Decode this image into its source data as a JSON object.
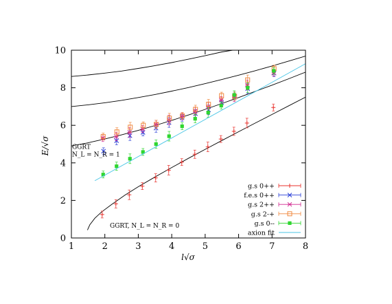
{
  "chart_data": {
    "type": "scatter",
    "xlabel": "l√σ",
    "ylabel": "E/√σ",
    "xlim": [
      1,
      8
    ],
    "ylim": [
      0,
      10
    ],
    "xticks": [
      "1",
      "2",
      "3",
      "4",
      "5",
      "6",
      "7",
      "8"
    ],
    "yticks": [
      "0",
      "2",
      "4",
      "6",
      "8",
      "10"
    ],
    "grid": false,
    "legend_position": "bottom-right",
    "annotations": [
      {
        "id": "ggrt1",
        "lines": [
          "GGRT",
          "N_L = N_R = 1"
        ],
        "x": 1.02,
        "y": 4.75
      },
      {
        "id": "ggrt0",
        "lines": [
          "GGRT, N_L = N_R = 0"
        ],
        "x": 2.15,
        "y": 0.55
      }
    ],
    "series": [
      {
        "name": "g.s 0++",
        "color": "#e8302b",
        "marker": "plus",
        "x": [
          1.92,
          2.33,
          2.73,
          3.12,
          3.52,
          3.91,
          4.3,
          4.69,
          5.08,
          5.47,
          5.86,
          6.25,
          7.04
        ],
        "y": [
          1.25,
          1.82,
          2.3,
          2.76,
          3.2,
          3.61,
          4.04,
          4.46,
          4.85,
          5.27,
          5.68,
          6.12,
          6.95
        ]
      },
      {
        "name": "f.e.s 0++",
        "color": "#2b40d8",
        "marker": "x",
        "x": [
          1.96,
          2.35,
          2.75,
          3.14,
          3.53,
          3.92,
          4.31,
          4.71,
          5.1,
          5.49,
          5.88,
          6.27,
          7.06
        ],
        "y": [
          4.62,
          5.18,
          5.45,
          5.62,
          5.85,
          6.15,
          6.4,
          6.62,
          6.82,
          7.2,
          7.55,
          7.95,
          8.78
        ]
      },
      {
        "name": "g.s 2++",
        "color": "#d1288f",
        "marker": "star",
        "x": [
          1.94,
          2.34,
          2.74,
          3.13,
          3.53,
          3.92,
          4.31,
          4.7,
          5.09,
          5.48,
          5.87,
          6.26,
          7.05
        ],
        "y": [
          5.32,
          5.4,
          5.62,
          5.8,
          6.05,
          6.28,
          6.48,
          6.75,
          6.98,
          7.35,
          7.48,
          8.15,
          8.8
        ]
      },
      {
        "name": "g.s 2-+",
        "color": "#f0883e",
        "marker": "square-open",
        "x": [
          1.95,
          2.36,
          2.76,
          3.15,
          3.54,
          3.93,
          4.32,
          4.71,
          5.1,
          5.49,
          5.88,
          6.27,
          7.06
        ],
        "y": [
          5.4,
          5.65,
          5.9,
          6.0,
          6.05,
          6.38,
          6.5,
          6.85,
          7.12,
          7.58,
          7.55,
          8.42,
          9.02
        ]
      },
      {
        "name": "g.s 0--",
        "color": "#2fd62f",
        "marker": "square-filled",
        "x": [
          1.95,
          2.35,
          2.75,
          3.14,
          3.53,
          3.92,
          4.31,
          4.7,
          5.09,
          5.48,
          5.87,
          6.27,
          7.05
        ],
        "y": [
          3.38,
          3.82,
          4.22,
          4.58,
          5.0,
          5.42,
          5.95,
          6.35,
          6.68,
          7.05,
          7.62,
          8.0,
          8.9
        ]
      },
      {
        "name": "axion fit",
        "color": "#49c6e6",
        "marker": "line",
        "x": [
          1.7,
          8.0
        ],
        "y": [
          3.05,
          9.28
        ]
      }
    ],
    "curves": [
      {
        "id": "ggrt-n0",
        "color": "#000000",
        "x": [
          1.48,
          1.55,
          1.7,
          1.9,
          2.2,
          2.6,
          3.0,
          3.5,
          4.0,
          4.5,
          5.0,
          5.5,
          6.0,
          6.5,
          7.0,
          7.5,
          8.0
        ],
        "y": [
          0.42,
          0.7,
          1.05,
          1.38,
          1.78,
          2.28,
          2.73,
          3.25,
          3.75,
          4.24,
          4.72,
          5.19,
          5.66,
          6.12,
          6.58,
          7.04,
          7.5
        ]
      },
      {
        "id": "ggrt-n1",
        "color": "#000000",
        "x": [
          1.0,
          1.5,
          2.0,
          2.5,
          3.0,
          3.5,
          4.0,
          4.5,
          5.0,
          5.5,
          6.0,
          6.5,
          7.0,
          7.5,
          8.0
        ],
        "y": [
          4.9,
          5.07,
          5.27,
          5.49,
          5.73,
          5.99,
          6.26,
          6.55,
          6.85,
          7.16,
          7.48,
          7.81,
          8.14,
          8.48,
          8.83
        ]
      },
      {
        "id": "upper-1",
        "color": "#000000",
        "x": [
          1.0,
          1.5,
          2.0,
          2.5,
          3.0,
          3.5,
          4.0,
          4.5,
          5.0,
          5.5,
          6.0,
          6.5,
          7.0,
          7.5,
          8.0
        ],
        "y": [
          7.0,
          7.09,
          7.2,
          7.33,
          7.48,
          7.64,
          7.82,
          8.01,
          8.22,
          8.44,
          8.67,
          8.91,
          9.16,
          9.42,
          9.69
        ]
      },
      {
        "id": "upper-2",
        "color": "#000000",
        "x": [
          1.0,
          1.5,
          2.0,
          2.5,
          3.0,
          3.5,
          4.0,
          4.5,
          5.0,
          5.5,
          5.82
        ],
        "y": [
          8.6,
          8.68,
          8.78,
          8.89,
          9.03,
          9.18,
          9.34,
          9.52,
          9.71,
          9.91,
          10.0
        ]
      }
    ]
  }
}
